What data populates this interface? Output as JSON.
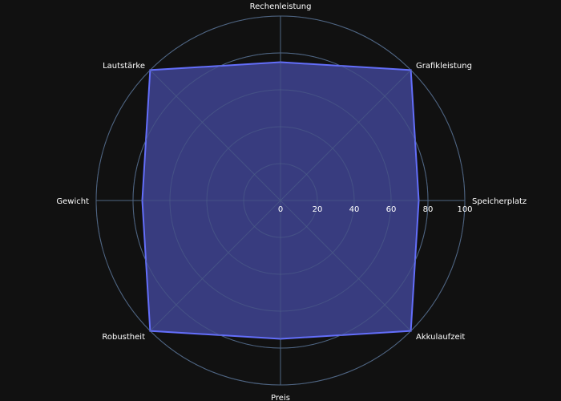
{
  "chart_data": {
    "type": "radar",
    "categories": [
      "Rechenleistung",
      "Grafikleistung",
      "Speicherplatz",
      "Akkulaufzeit",
      "Preis",
      "Robustheit",
      "Gewicht",
      "Lautstärke"
    ],
    "series": [
      {
        "values": [
          75,
          100,
          75,
          100,
          75,
          100,
          75,
          100
        ]
      }
    ],
    "radial_range": [
      0,
      100
    ],
    "radial_ticks": [
      0,
      20,
      40,
      60,
      80,
      100
    ],
    "radial_tick_labels": [
      "0",
      "20",
      "40",
      "60",
      "80",
      "100"
    ],
    "grid": true,
    "legend": "none",
    "colors": {
      "background": "#111111",
      "grid": "#506784",
      "series_line": "#636efa",
      "series_fill": "#3b3f86",
      "text": "#ffffff"
    }
  }
}
